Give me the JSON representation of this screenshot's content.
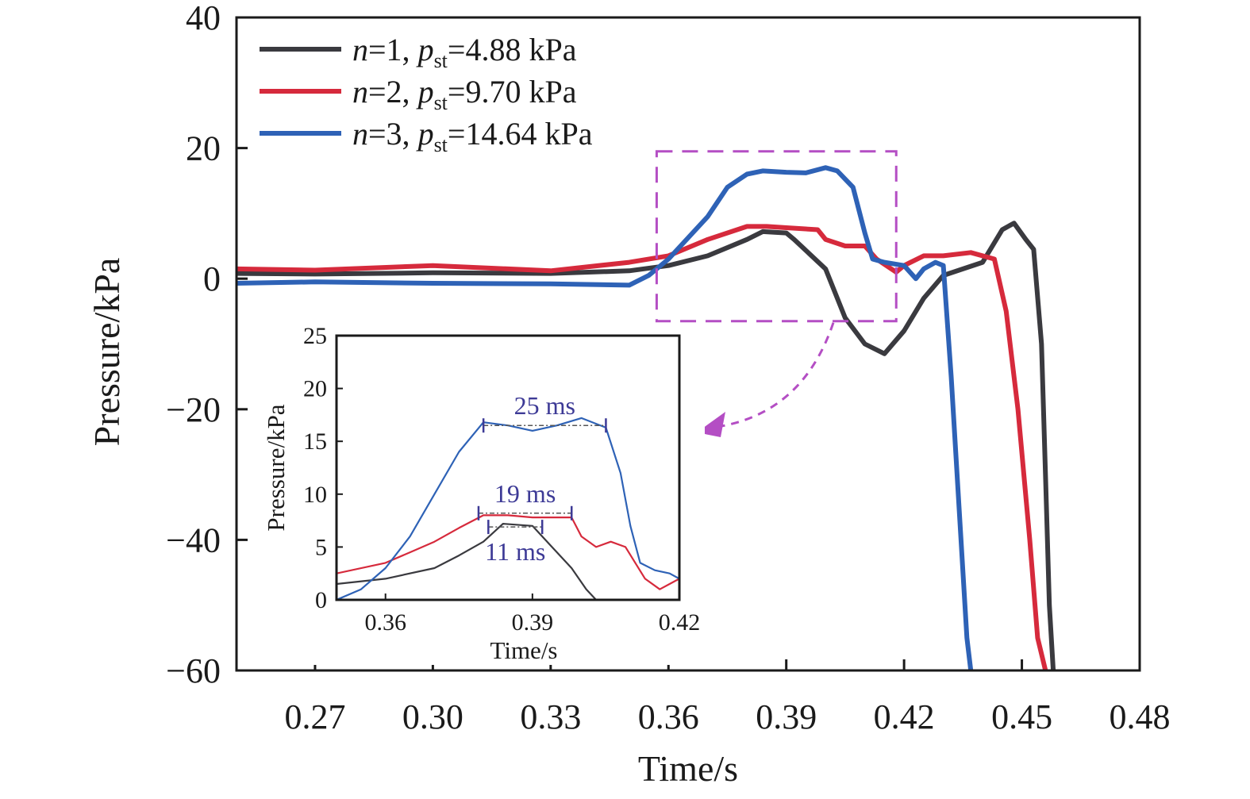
{
  "chart_data": [
    {
      "type": "line",
      "xlabel": "Time/s",
      "ylabel": "Pressure/kPa",
      "xlim": [
        0.25,
        0.48
      ],
      "ylim": [
        -60,
        40
      ],
      "xticks": [
        "0.27",
        "0.30",
        "0.33",
        "0.36",
        "0.39",
        "0.42",
        "0.45",
        "0.48"
      ],
      "yticks": [
        "40",
        "20",
        "0",
        "−20",
        "−40",
        "−60"
      ],
      "legend_position": "top-left",
      "grid": false,
      "series": [
        {
          "name_parts": [
            "n",
            "=1, ",
            "p",
            "st",
            "=4.88 kPa"
          ],
          "color": "#3a3a3f",
          "x": [
            0.25,
            0.27,
            0.3,
            0.33,
            0.35,
            0.36,
            0.37,
            0.38,
            0.384,
            0.39,
            0.392,
            0.4,
            0.405,
            0.41,
            0.415,
            0.42,
            0.425,
            0.43,
            0.435,
            0.44,
            0.445,
            0.448,
            0.451,
            0.453,
            0.455,
            0.456,
            0.457,
            0.458
          ],
          "y": [
            0.8,
            0.7,
            0.9,
            0.8,
            1.2,
            2.0,
            3.5,
            6.0,
            7.2,
            7.0,
            6.0,
            1.5,
            -6.0,
            -10.0,
            -11.5,
            -8.0,
            -3.0,
            0.5,
            1.5,
            2.5,
            7.5,
            8.5,
            6.0,
            4.5,
            -10.0,
            -30.0,
            -50.0,
            -60.0
          ]
        },
        {
          "name_parts": [
            "n",
            "=2, ",
            "p",
            "st",
            "=9.70 kPa"
          ],
          "color": "#d62a3c",
          "x": [
            0.25,
            0.27,
            0.3,
            0.33,
            0.35,
            0.36,
            0.37,
            0.38,
            0.385,
            0.39,
            0.398,
            0.4,
            0.405,
            0.41,
            0.413,
            0.418,
            0.42,
            0.425,
            0.43,
            0.437,
            0.443,
            0.446,
            0.449,
            0.452,
            0.454,
            0.456
          ],
          "y": [
            1.5,
            1.3,
            2.0,
            1.2,
            2.5,
            3.5,
            6.0,
            8.0,
            8.0,
            7.8,
            7.5,
            6.0,
            5.0,
            5.0,
            3.0,
            1.0,
            2.0,
            3.5,
            3.5,
            4.0,
            3.0,
            -5.0,
            -20.0,
            -40.0,
            -55.0,
            -60.0
          ]
        },
        {
          "name_parts": [
            "n",
            "=3, ",
            "p",
            "st",
            "=14.64 kPa"
          ],
          "color": "#2e62b6",
          "x": [
            0.25,
            0.27,
            0.3,
            0.33,
            0.35,
            0.355,
            0.36,
            0.37,
            0.375,
            0.38,
            0.384,
            0.39,
            0.395,
            0.4,
            0.403,
            0.407,
            0.41,
            0.412,
            0.415,
            0.42,
            0.423,
            0.425,
            0.428,
            0.43,
            0.432,
            0.434,
            0.436,
            0.437
          ],
          "y": [
            -0.7,
            -0.5,
            -0.7,
            -0.8,
            -1.0,
            0.5,
            3.0,
            9.5,
            14.0,
            16.0,
            16.5,
            16.3,
            16.2,
            17.0,
            16.5,
            14.0,
            7.0,
            3.0,
            2.5,
            2.0,
            0.0,
            1.5,
            2.5,
            2.0,
            -15.0,
            -35.0,
            -55.0,
            -60.0
          ]
        }
      ],
      "highlight_box": {
        "x": [
          0.357,
          0.418
        ],
        "y": [
          -6.5,
          19.5
        ],
        "color": "#b44ec4"
      },
      "inset": {
        "xlabel": "Time/s",
        "ylabel": "Pressure/kPa",
        "xlim": [
          0.35,
          0.42
        ],
        "ylim": [
          0,
          25
        ],
        "xticks": [
          "0.36",
          "0.39",
          "0.42"
        ],
        "yticks": [
          "25",
          "20",
          "15",
          "10",
          "5",
          "0"
        ],
        "series": [
          {
            "color": "#3a3a3f",
            "x": [
              0.35,
              0.36,
              0.37,
              0.375,
              0.38,
              0.384,
              0.39,
              0.394,
              0.398,
              0.401,
              0.403
            ],
            "y": [
              1.5,
              2.0,
              3.0,
              4.2,
              5.5,
              7.2,
              7.0,
              5.0,
              3.0,
              1.0,
              0.0
            ],
            "annotation": {
              "label": "11 ms",
              "x_start": 0.381,
              "x_end": 0.392,
              "y": 6.9
            }
          },
          {
            "color": "#d62a3c",
            "x": [
              0.35,
              0.36,
              0.365,
              0.37,
              0.375,
              0.38,
              0.385,
              0.39,
              0.398,
              0.4,
              0.403,
              0.406,
              0.409,
              0.413,
              0.416,
              0.418,
              0.42
            ],
            "y": [
              2.5,
              3.5,
              4.5,
              5.5,
              6.8,
              8.0,
              8.0,
              7.8,
              7.8,
              6.0,
              5.0,
              5.5,
              5.0,
              2.0,
              1.0,
              1.5,
              2.0
            ],
            "annotation": {
              "label": "19 ms",
              "x_start": 0.379,
              "x_end": 0.398,
              "y": 8.2
            }
          },
          {
            "color": "#2e62b6",
            "x": [
              0.35,
              0.355,
              0.36,
              0.365,
              0.37,
              0.375,
              0.38,
              0.385,
              0.39,
              0.395,
              0.4,
              0.405,
              0.408,
              0.41,
              0.412,
              0.415,
              0.418,
              0.42
            ],
            "y": [
              0.0,
              1.0,
              3.0,
              6.0,
              10.0,
              14.0,
              16.8,
              16.5,
              16.0,
              16.5,
              17.2,
              16.3,
              12.0,
              7.0,
              3.5,
              2.8,
              2.5,
              2.0
            ],
            "annotation": {
              "label": "25 ms",
              "x_start": 0.38,
              "x_end": 0.405,
              "y": 16.5
            }
          }
        ]
      }
    }
  ]
}
